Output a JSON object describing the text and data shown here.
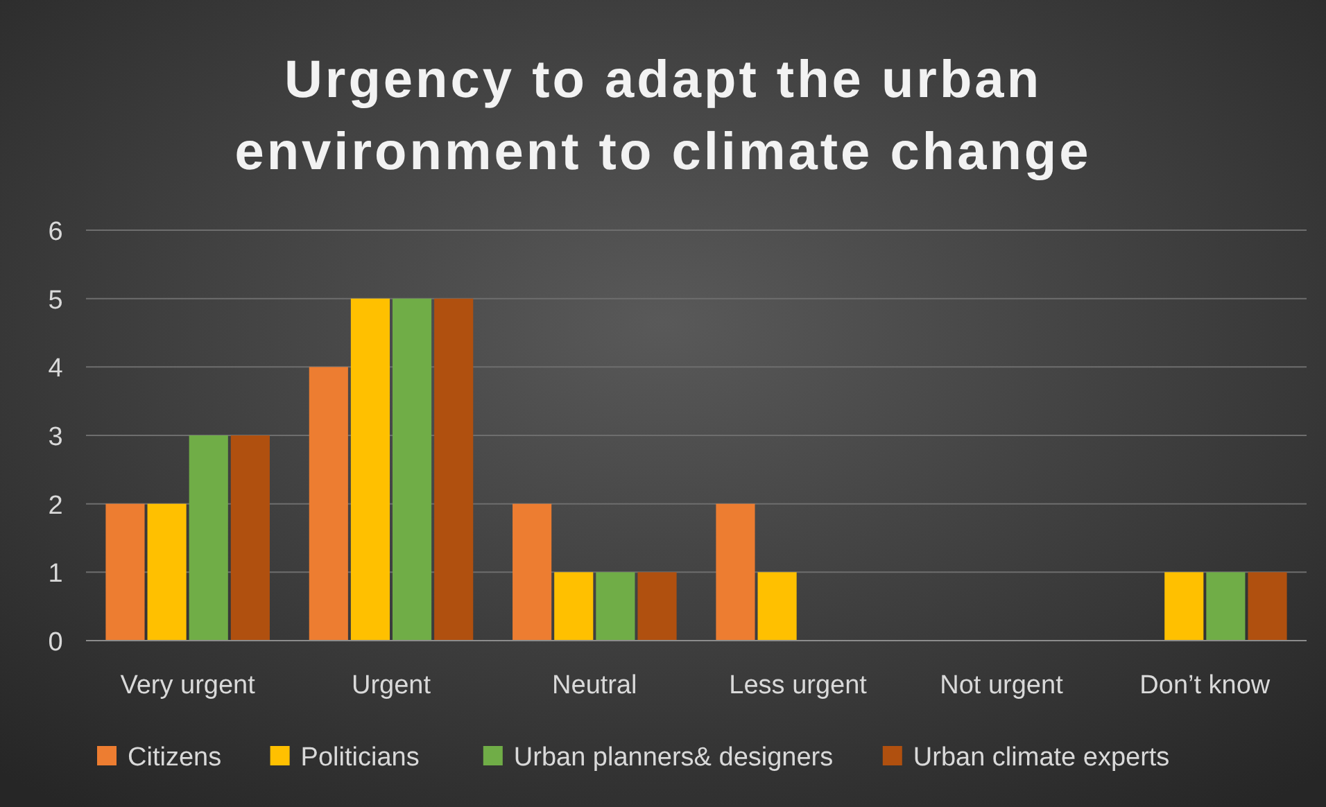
{
  "chart_data": {
    "type": "bar",
    "title": "Urgency to adapt the urban environment to climate change",
    "categories": [
      "Very urgent",
      "Urgent",
      "Neutral",
      "Less urgent",
      "Not urgent",
      "Don’t know"
    ],
    "series": [
      {
        "name": "Citizens",
        "color": "#ed7d31",
        "values": [
          2,
          4,
          2,
          2,
          0,
          0
        ]
      },
      {
        "name": "Politicians",
        "color": "#ffc000",
        "values": [
          2,
          5,
          1,
          1,
          0,
          1
        ]
      },
      {
        "name": "Urban planners& designers",
        "color": "#70ad47",
        "values": [
          3,
          5,
          1,
          0,
          0,
          1
        ]
      },
      {
        "name": "Urban climate experts",
        "color": "#b0500f",
        "values": [
          3,
          5,
          1,
          0,
          0,
          1
        ]
      }
    ],
    "ylim": [
      0,
      6
    ],
    "yticks": [
      0,
      1,
      2,
      3,
      4,
      5,
      6
    ],
    "grid": "y",
    "legend": "bottom"
  }
}
